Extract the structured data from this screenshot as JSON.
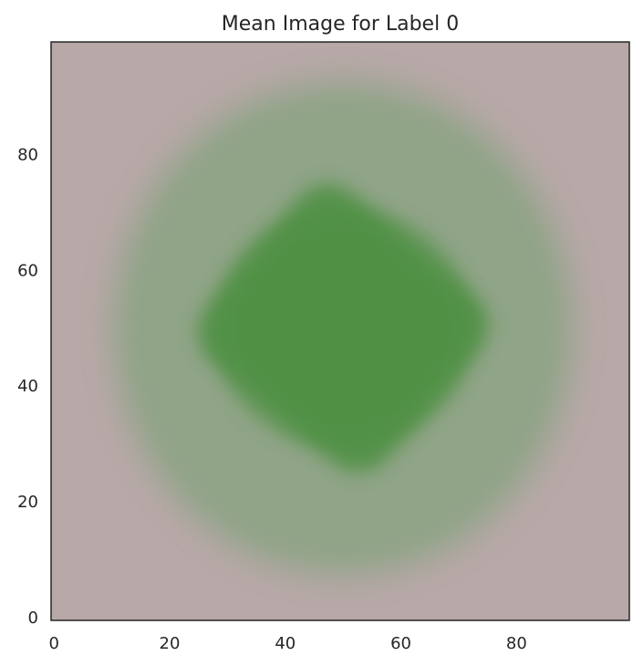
{
  "chart_data": {
    "type": "heatmap",
    "title": "Mean Image for Label 0",
    "xlabel": "",
    "ylabel": "",
    "image_size": [
      100,
      100
    ],
    "xlim": [
      -0.5,
      99.5
    ],
    "ylim": [
      99.5,
      -0.5
    ],
    "x_ticks": [
      0,
      20,
      40,
      60,
      80
    ],
    "y_ticks": [
      0,
      20,
      40,
      60,
      80
    ],
    "grid": false,
    "legend": "none",
    "colors": {
      "background": "#b8a8a8",
      "blob_outer": "#8fa487",
      "blob_inner": "#4e9042",
      "frame": "#262626"
    },
    "blob": {
      "center": [
        50,
        50
      ],
      "outer_radius": [
        40,
        43
      ],
      "inner_radius": [
        28,
        26
      ]
    }
  }
}
